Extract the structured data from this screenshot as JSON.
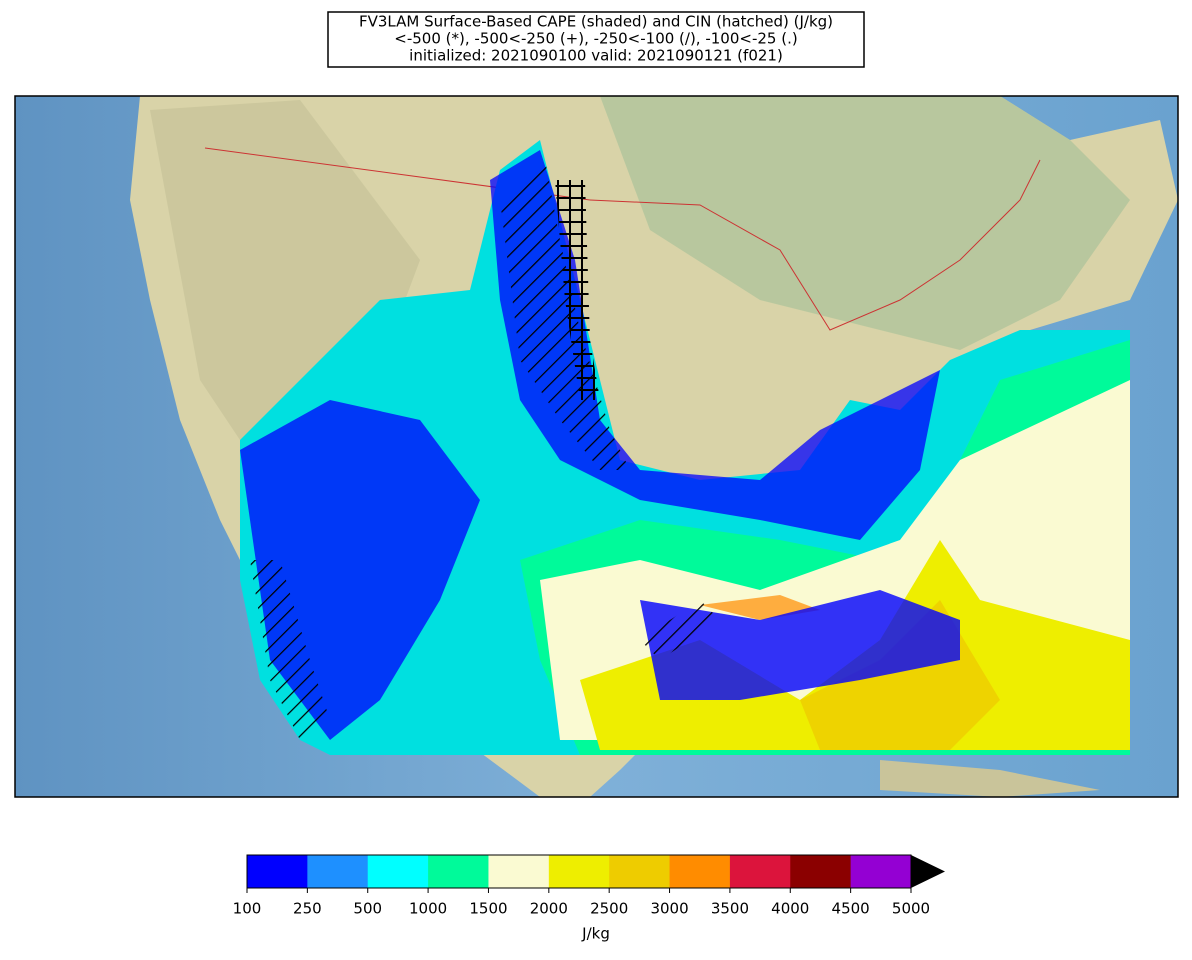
{
  "title": {
    "lines": [
      "FV3LAM Surface-Based CAPE (shaded) and CIN (hatched) (J/kg)",
      "<-500 (*), -500<-250 (+), -250<-100 (/), -100<-25 (.)",
      "initialized: 2021090100 valid: 2021090121 (f021)"
    ]
  },
  "colorbar": {
    "ticks": [
      100,
      250,
      500,
      1000,
      1500,
      2000,
      2500,
      3000,
      3500,
      4000,
      4500,
      5000
    ],
    "colors": [
      "#0000ff",
      "#1e90ff",
      "#00ffff",
      "#00fa9a",
      "#fafad2",
      "#eeee00",
      "#eecc00",
      "#ff8c00",
      "#dc143c",
      "#8b0000",
      "#9400d3"
    ],
    "extend_color": "#000000",
    "label": "J/kg"
  }
}
